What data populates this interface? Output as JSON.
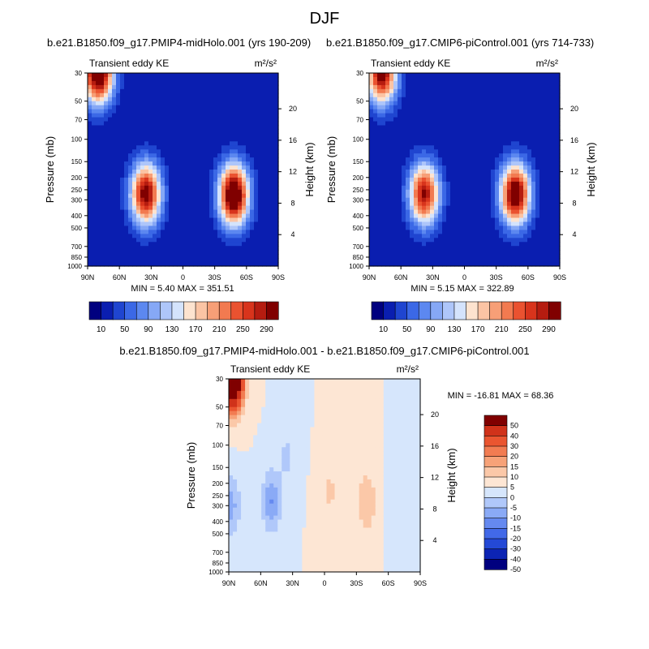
{
  "figure": {
    "title": "DJF"
  },
  "palette_full": [
    "#00007f",
    "#0a1eb0",
    "#1f45d0",
    "#3b68e6",
    "#5c88f0",
    "#86a8f6",
    "#aec6fa",
    "#d4e3fc",
    "#fde3cf",
    "#fbc4a4",
    "#f79f77",
    "#f27a50",
    "#ea5230",
    "#d8341c",
    "#b51c10",
    "#800000"
  ],
  "palette_diff": [
    "#00007f",
    "#0c24b4",
    "#2449d6",
    "#4269e8",
    "#6589f0",
    "#8aaaf6",
    "#b0c8fa",
    "#d6e6fc",
    "#fde6d4",
    "#fbc8a8",
    "#f7a278",
    "#f27c52",
    "#ea5530",
    "#d0321a",
    "#800000"
  ],
  "chart_data": [
    {
      "type": "heatmap",
      "panel": "left",
      "title": "b.e21.B1850.f09_g17.PMIP4-midHolo.001 (yrs 190-209)",
      "subtitle_left": "Transient eddy KE",
      "units": "m²/s²",
      "ylabel": "Pressure (mb)",
      "y2label": "Height (km)",
      "x_ticks": [
        "90N",
        "60N",
        "30N",
        "0",
        "30S",
        "60S",
        "90S"
      ],
      "y_ticks": [
        "30",
        "50",
        "70",
        "100",
        "150",
        "200",
        "250",
        "300",
        "400",
        "500",
        "700",
        "850",
        "1000"
      ],
      "y2_ticks": [
        "20",
        "16",
        "12",
        "8",
        "4"
      ],
      "min_label": "MIN = ",
      "min_value": "5.40",
      "max_label": "MAX = ",
      "max_value": "351.51",
      "levels": [
        "10",
        "50",
        "90",
        "130",
        "170",
        "210",
        "250",
        "290"
      ],
      "blobs": [
        {
          "lat": 80,
          "p": 30,
          "amplitude": 340
        },
        {
          "lat": 35,
          "p": 270,
          "amplitude": 300
        },
        {
          "lat": -48,
          "p": 275,
          "amplitude": 345
        }
      ]
    },
    {
      "type": "heatmap",
      "panel": "right",
      "title": "b.e21.B1850.f09_g17.CMIP6-piControl.001 (yrs 714-733)",
      "subtitle_left": "Transient eddy KE",
      "units": "m²/s²",
      "ylabel": "Pressure (mb)",
      "y2label": "Height (km)",
      "x_ticks": [
        "90N",
        "60N",
        "30N",
        "0",
        "30S",
        "60S",
        "90S"
      ],
      "y_ticks": [
        "30",
        "50",
        "70",
        "100",
        "150",
        "200",
        "250",
        "300",
        "400",
        "500",
        "700",
        "850",
        "1000"
      ],
      "y2_ticks": [
        "20",
        "16",
        "12",
        "8",
        "4"
      ],
      "min_label": "MIN = ",
      "min_value": "5.15",
      "max_label": "MAX = ",
      "max_value": "322.89",
      "levels": [
        "10",
        "50",
        "90",
        "130",
        "170",
        "210",
        "250",
        "290"
      ],
      "blobs": [
        {
          "lat": 78,
          "p": 30,
          "amplitude": 300
        },
        {
          "lat": 38,
          "p": 270,
          "amplitude": 280
        },
        {
          "lat": -48,
          "p": 270,
          "amplitude": 320
        }
      ]
    },
    {
      "type": "heatmap",
      "panel": "difference",
      "title": "b.e21.B1850.f09_g17.PMIP4-midHolo.001 - b.e21.B1850.f09_g17.CMIP6-piControl.001",
      "subtitle_left": "Transient eddy KE",
      "units": "m²/s²",
      "ylabel": "Pressure (mb)",
      "y2label": "Height (km)",
      "x_ticks": [
        "90N",
        "60N",
        "30N",
        "0",
        "30S",
        "60S",
        "90S"
      ],
      "y_ticks": [
        "30",
        "50",
        "70",
        "100",
        "150",
        "200",
        "250",
        "300",
        "400",
        "500",
        "700",
        "850",
        "1000"
      ],
      "y2_ticks": [
        "20",
        "16",
        "12",
        "8",
        "4"
      ],
      "min_label": "MIN = ",
      "min_value": "-16.81",
      "max_label": "MAX = ",
      "max_value": "68.36",
      "levels": [
        "50",
        "40",
        "30",
        "20",
        "15",
        "10",
        "5",
        "0",
        "-5",
        "-10",
        "-15",
        "-20",
        "-30",
        "-40",
        "-50"
      ],
      "blobs": [
        {
          "lat": 86,
          "p": 30,
          "amplitude": 68
        },
        {
          "lat": 50,
          "p": 280,
          "amplitude": -15
        },
        {
          "lat": 88,
          "p": 300,
          "amplitude": -12
        },
        {
          "lat": -40,
          "p": 280,
          "amplitude": 10
        },
        {
          "lat": -5,
          "p": 230,
          "amplitude": 6
        },
        {
          "lat": 35,
          "p": 120,
          "amplitude": -6
        },
        {
          "lat": -70,
          "p": 250,
          "amplitude": -5
        }
      ]
    }
  ]
}
